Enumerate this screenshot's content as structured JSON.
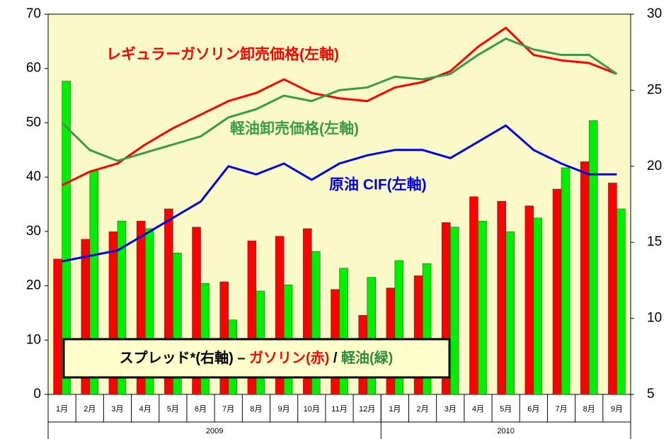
{
  "chart_data": {
    "type": "combo",
    "categories": [
      "1月",
      "2月",
      "3月",
      "4月",
      "5月",
      "6月",
      "7月",
      "8月",
      "9月",
      "10月",
      "11月",
      "12月",
      "1月",
      "2月",
      "3月",
      "4月",
      "5月",
      "6月",
      "7月",
      "8月",
      "9月"
    ],
    "groups": [
      {
        "label": "2009",
        "count": 12
      },
      {
        "label": "2010",
        "count": 9
      }
    ],
    "ylim": [
      0,
      70
    ],
    "yticks": [
      0,
      10,
      20,
      30,
      40,
      50,
      60,
      70
    ],
    "y2lim": [
      5,
      30
    ],
    "y2ticks": [
      5,
      10,
      15,
      20,
      25,
      30
    ],
    "legend_title": "スプレッド*(右軸)",
    "legend_separators": [
      "–",
      "/"
    ],
    "series": [
      {
        "name": "ガソリン(赤)",
        "type": "bar",
        "axis": "y2",
        "color": "#ff0000",
        "values": [
          13.9,
          15.2,
          15.7,
          16.4,
          17.2,
          16.0,
          12.4,
          15.1,
          15.4,
          15.9,
          11.9,
          10.2,
          12.0,
          12.8,
          16.3,
          18.0,
          17.7,
          17.4,
          18.5,
          20.3,
          18.9
        ]
      },
      {
        "name": "軽油(緑)",
        "type": "bar",
        "axis": "y2",
        "color": "#00ee00",
        "values": [
          25.6,
          19.7,
          16.4,
          15.9,
          14.3,
          12.3,
          9.9,
          11.8,
          12.2,
          14.4,
          13.3,
          12.7,
          13.8,
          13.6,
          16.0,
          16.4,
          15.7,
          16.6,
          19.9,
          23.0,
          17.2
        ]
      },
      {
        "name": "レギュラーガソリン卸売価格(左軸)",
        "type": "line",
        "color": "#ff0000",
        "values": [
          38.5,
          41,
          42.5,
          46,
          49,
          51.5,
          54,
          55.5,
          58,
          55.5,
          54.5,
          54,
          56.5,
          57.5,
          59.5,
          64,
          67.5,
          62.5,
          61.5,
          61,
          59
        ]
      },
      {
        "name": "軽油卸売価格(左軸)",
        "type": "line",
        "color": "#3a9a4a",
        "values": [
          50,
          45,
          43,
          44.5,
          46,
          47.5,
          51,
          52.5,
          55,
          54,
          56,
          56.5,
          58.5,
          58,
          59,
          62.5,
          65.5,
          63.5,
          62.5,
          62.5,
          59
        ]
      },
      {
        "name": "原油 CIF(左軸)",
        "type": "line",
        "color": "#0000dd",
        "values": [
          24.5,
          25.5,
          26.5,
          29.5,
          32.5,
          35.5,
          42,
          40.5,
          42.5,
          39.5,
          42.5,
          44,
          45,
          45,
          43.5,
          46.5,
          49.5,
          45,
          42.5,
          40.5,
          40.5
        ]
      }
    ]
  }
}
